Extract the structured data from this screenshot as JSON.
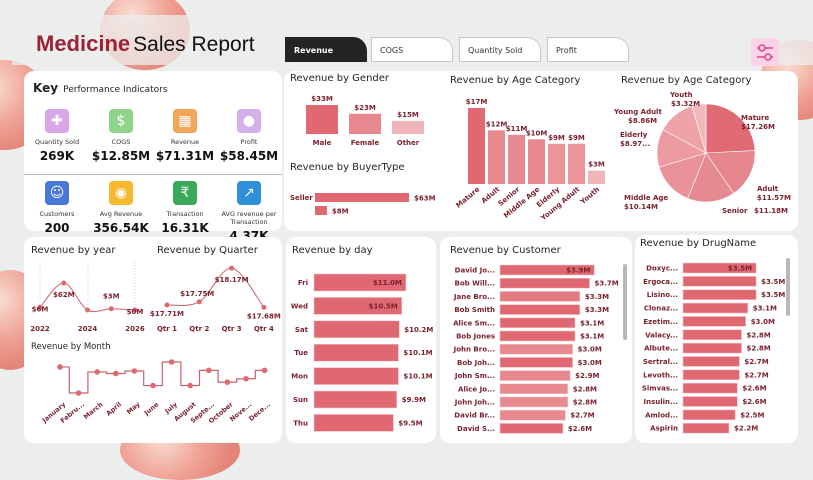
{
  "header": {
    "title_part1": "Medicine",
    "title_part2": "Sales Report"
  },
  "tabs": [
    {
      "label": "Revenue",
      "active": true
    },
    {
      "label": "COGS"
    },
    {
      "label": "Quantity Sold"
    },
    {
      "label": "Profit"
    }
  ],
  "filter_icon": "sliders-icon",
  "colors": {
    "accent": "#9b2335",
    "bar": "#e06872",
    "bar_light": "#e8888f",
    "bar_lighter": "#efb5b9",
    "label": "#7a1f2b"
  },
  "kpi": {
    "title_bold": "Key",
    "title_rest": "Performance Indicators",
    "items": [
      {
        "label": "Quantity Sold",
        "value": "269K",
        "icon": "medicine-icon"
      },
      {
        "label": "COGS",
        "value": "$12.85M",
        "icon": "money-growth-icon"
      },
      {
        "label": "Revenue",
        "value": "$71.31M",
        "icon": "calculator-icon"
      },
      {
        "label": "Profit",
        "value": "$58.45M",
        "icon": "medal-icon"
      },
      {
        "label": "Customers",
        "value": "200",
        "icon": "people-icon"
      },
      {
        "label": "Avg Revenue",
        "value": "356.54K",
        "icon": "coin-hand-icon"
      },
      {
        "label": "Transaction",
        "value": "16.31K",
        "icon": "currency-exchange-icon"
      },
      {
        "label": "AVG revenue per Transaction",
        "value": "4.37K",
        "icon": "growth-person-icon"
      }
    ]
  },
  "chart_data": [
    {
      "id": "gender",
      "type": "bar",
      "title": "Revenue by Gender",
      "categories": [
        "Male",
        "Female",
        "Other"
      ],
      "values": [
        33,
        23,
        15
      ],
      "labels": [
        "$33M",
        "$23M",
        "$15M"
      ]
    },
    {
      "id": "buyer",
      "type": "bar",
      "orientation": "horizontal",
      "title": "Revenue by BuyerType",
      "categories": [
        "Seller",
        ""
      ],
      "values": [
        63,
        8
      ],
      "labels": [
        "$63M",
        "$8M"
      ]
    },
    {
      "id": "agebar",
      "type": "bar",
      "title": "Revenue by Age Category",
      "categories": [
        "Mature",
        "Adult",
        "Senior",
        "Middle Age",
        "Elderly",
        "Young Adult",
        "Youth"
      ],
      "values": [
        17,
        12,
        11,
        10,
        9,
        9,
        3
      ],
      "labels": [
        "$17M",
        "$12M",
        "$11M",
        "$10M",
        "$9M",
        "$9M",
        "$3M"
      ]
    },
    {
      "id": "agepie",
      "type": "pie",
      "title": "Revenue by Age Category",
      "categories": [
        "Mature",
        "Adult",
        "Senior",
        "Middle Age",
        "Elderly",
        "Young Adult",
        "Youth"
      ],
      "values": [
        17.26,
        11.57,
        11.18,
        10.14,
        8.97,
        8.86,
        3.32
      ],
      "labels": [
        "$17.26M",
        "$11.57M",
        "$11.18M",
        "$10.14M",
        "$8.97...",
        "$8.86M",
        "$3.32M"
      ]
    },
    {
      "id": "year",
      "type": "line",
      "title": "Revenue by year",
      "x": [
        2022,
        2023,
        2024,
        2025,
        2026
      ],
      "values": [
        6,
        62,
        0,
        3,
        0
      ],
      "labels": [
        "$6M",
        "$62M",
        "",
        "$3M",
        "$0M"
      ],
      "ticks": [
        "2022",
        "2024",
        "2026"
      ]
    },
    {
      "id": "quarter",
      "type": "line",
      "title": "Revenue by Quarter",
      "categories": [
        "Qtr 1",
        "Qtr 2",
        "Qtr 3",
        "Qtr 4"
      ],
      "values": [
        17.71,
        17.75,
        18.17,
        17.68
      ],
      "labels": [
        "$17.71M",
        "$17.75M",
        "$18.17M",
        "$17.68M"
      ]
    },
    {
      "id": "month",
      "type": "line",
      "step": true,
      "title": "Revenue by Month",
      "categories": [
        "January",
        "Febru...",
        "March",
        "April",
        "May",
        "June",
        "July",
        "August",
        "Septe...",
        "October",
        "Nove...",
        "Dece..."
      ],
      "values": [
        6.14,
        5.3,
        5.98,
        5.93,
        6.01,
        5.54,
        6.3,
        5.54,
        6.03,
        5.65,
        5.76,
        6.03
      ]
    },
    {
      "id": "day",
      "type": "bar",
      "orientation": "horizontal",
      "title": "Revenue by day",
      "categories": [
        "Fri",
        "Wed",
        "Sat",
        "Tue",
        "Mon",
        "Sun",
        "Thu"
      ],
      "values": [
        11.0,
        10.5,
        10.2,
        10.1,
        10.1,
        9.9,
        9.5
      ],
      "labels": [
        "$11.0M",
        "$10.5M",
        "$10.2M",
        "$10.1M",
        "$10.1M",
        "$9.9M",
        "$9.5M"
      ]
    },
    {
      "id": "customer",
      "type": "bar",
      "orientation": "horizontal",
      "title": "Revenue by Customer",
      "categories": [
        "David Jo...",
        "Bob Will...",
        "Jane Bro...",
        "Bob Smith",
        "Alice Sm...",
        "Bob Jones",
        "John Bro...",
        "Bob Joh...",
        "John Sm...",
        "Alice Jo...",
        "John Joh...",
        "David Br...",
        "David S..."
      ],
      "values": [
        3.9,
        3.7,
        3.3,
        3.3,
        3.1,
        3.1,
        3.0,
        3.0,
        2.9,
        2.8,
        2.8,
        2.7,
        2.6
      ],
      "labels": [
        "$3.9M",
        "$3.7M",
        "$3.3M",
        "$3.3M",
        "$3.1M",
        "$3.1M",
        "$3.0M",
        "$3.0M",
        "$2.9M",
        "$2.8M",
        "$2.8M",
        "$2.7M",
        "$2.6M"
      ]
    },
    {
      "id": "drug",
      "type": "bar",
      "orientation": "horizontal",
      "title": "Revenue by DrugName",
      "categories": [
        "Doxyc...",
        "Ergoca...",
        "Lisino...",
        "Clonaz...",
        "Ezetim...",
        "Valacy...",
        "Albute...",
        "Sertral...",
        "Levoth...",
        "Simvas...",
        "Insulin...",
        "Amlod...",
        "Aspirin"
      ],
      "values": [
        3.5,
        3.5,
        3.5,
        3.1,
        3.0,
        2.8,
        2.8,
        2.7,
        2.7,
        2.6,
        2.6,
        2.5,
        2.2
      ],
      "labels": [
        "$3.5M",
        "$3.5M",
        "$3.5M",
        "$3.1M",
        "$3.0M",
        "$2.8M",
        "$2.8M",
        "$2.7M",
        "$2.7M",
        "$2.6M",
        "$2.6M",
        "$2.5M",
        "$2.2M"
      ]
    }
  ]
}
